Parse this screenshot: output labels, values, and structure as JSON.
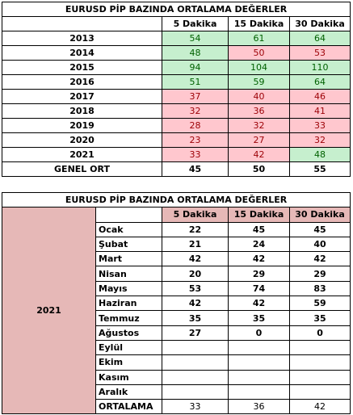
{
  "table1": {
    "title": "EURUSD  PİP BAZINDA ORTALAMA DEĞERLER",
    "headers": [
      "5 Dakika",
      "15 Dakika",
      "30 Dakika"
    ],
    "rows": [
      {
        "label": "2013",
        "values": [
          54,
          61,
          64
        ],
        "colors": [
          "green",
          "green",
          "green"
        ]
      },
      {
        "label": "2014",
        "values": [
          48,
          50,
          53
        ],
        "colors": [
          "green",
          "red",
          "red"
        ]
      },
      {
        "label": "2015",
        "values": [
          94,
          104,
          110
        ],
        "colors": [
          "green",
          "green",
          "green"
        ]
      },
      {
        "label": "2016",
        "values": [
          51,
          59,
          64
        ],
        "colors": [
          "green",
          "green",
          "green"
        ]
      },
      {
        "label": "2017",
        "values": [
          37,
          40,
          46
        ],
        "colors": [
          "red",
          "red",
          "red"
        ]
      },
      {
        "label": "2018",
        "values": [
          32,
          36,
          41
        ],
        "colors": [
          "red",
          "red",
          "red"
        ]
      },
      {
        "label": "2019",
        "values": [
          28,
          32,
          33
        ],
        "colors": [
          "red",
          "red",
          "red"
        ]
      },
      {
        "label": "2020",
        "values": [
          23,
          27,
          32
        ],
        "colors": [
          "red",
          "red",
          "red"
        ]
      },
      {
        "label": "2021",
        "values": [
          33,
          42,
          48
        ],
        "colors": [
          "red",
          "red",
          "green"
        ]
      }
    ],
    "total": {
      "label": "GENEL ORT",
      "values": [
        45,
        50,
        55
      ]
    }
  },
  "table2": {
    "title": "EURUSD  PİP BAZINDA ORTALAMA DEĞERLER",
    "year": "2021",
    "headers": [
      "5 Dakika",
      "15 Dakika",
      "30 Dakika"
    ],
    "rows": [
      {
        "label": "Ocak",
        "values": [
          22,
          45,
          45
        ]
      },
      {
        "label": "Şubat",
        "values": [
          21,
          24,
          40
        ]
      },
      {
        "label": "Mart",
        "values": [
          42,
          42,
          42
        ]
      },
      {
        "label": "Nisan",
        "values": [
          20,
          29,
          29
        ]
      },
      {
        "label": "Mayıs",
        "values": [
          53,
          74,
          83
        ]
      },
      {
        "label": "Haziran",
        "values": [
          42,
          42,
          59
        ]
      },
      {
        "label": "Temmuz",
        "values": [
          35,
          35,
          35
        ]
      },
      {
        "label": "Ağustos",
        "values": [
          27,
          0,
          0
        ]
      },
      {
        "label": "Eylül",
        "values": [
          null,
          null,
          null
        ]
      },
      {
        "label": "Ekim",
        "values": [
          null,
          null,
          null
        ]
      },
      {
        "label": "Kasım",
        "values": [
          null,
          null,
          null
        ]
      },
      {
        "label": "Aralık",
        "values": [
          null,
          null,
          null
        ]
      }
    ],
    "total": {
      "label": "ORTALAMA",
      "values": [
        33,
        36,
        42
      ]
    }
  }
}
